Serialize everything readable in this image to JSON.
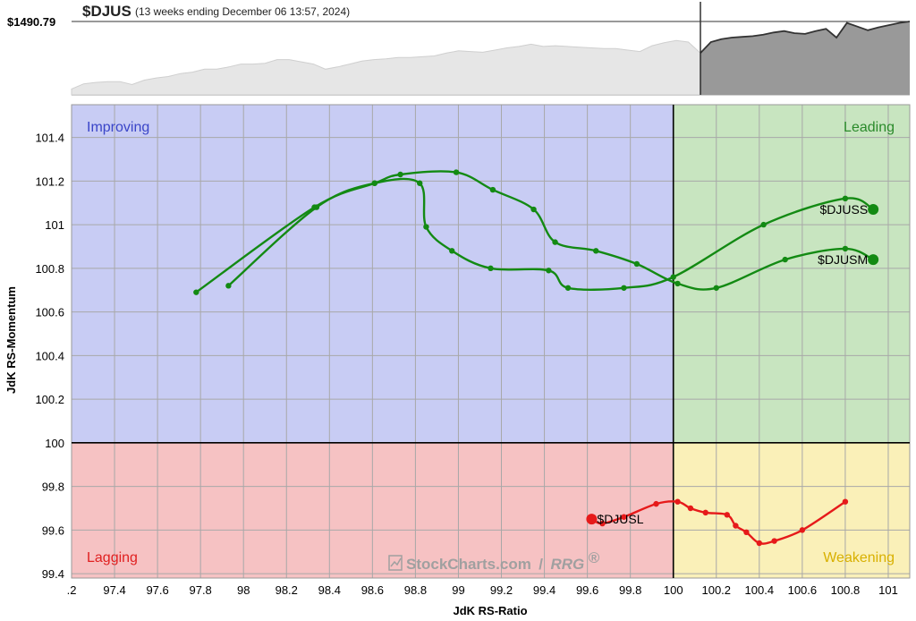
{
  "header": {
    "ticker": "$DJUS",
    "period": "(13 weeks ending December 06 13:57, 2024)",
    "price_label": "$1490.79"
  },
  "watermark": {
    "brand": "StockCharts.com",
    "separator": "/",
    "product": "RRG",
    "mark": "®"
  },
  "colors": {
    "improving": "#c8ccf4",
    "leading": "#c8e5c0",
    "lagging": "#f6c2c3",
    "weakening": "#faf0b8",
    "improving_text": "#3a45c8",
    "leading_text": "#2a8a2a",
    "lagging_text": "#e02020",
    "weakening_text": "#d8b000",
    "green_series": "#138a13",
    "red_series": "#e61a1a",
    "price_history": "#e6e6e6",
    "price_current": "#999999"
  },
  "chart_data": {
    "type": "scatter",
    "title": "",
    "xlabel": "JdK RS-Ratio",
    "ylabel": "JdK RS-Momentum",
    "xlim": [
      97.2,
      101.1
    ],
    "ylim": [
      99.38,
      101.55
    ],
    "x_ticks": [
      ".2",
      "97.4",
      "97.6",
      "97.8",
      "98",
      "98.2",
      "98.4",
      "98.6",
      "98.8",
      "99",
      "99.2",
      "99.4",
      "99.6",
      "99.8",
      "100",
      "100.2",
      "100.4",
      "100.6",
      "100.8",
      "101",
      "10"
    ],
    "y_ticks": [
      "99.4",
      "99.6",
      "99.8",
      "100",
      "100.2",
      "100.4",
      "100.6",
      "100.8",
      "101",
      "101.2",
      "101.4"
    ],
    "quadrants": {
      "top_left": "Improving",
      "top_right": "Leading",
      "bottom_left": "Lagging",
      "bottom_right": "Weakening"
    },
    "center": [
      100,
      100
    ],
    "series": [
      {
        "name": "$DJUSS",
        "color": "green",
        "points": [
          [
            97.93,
            100.72
          ],
          [
            98.34,
            101.08
          ],
          [
            98.61,
            101.19
          ],
          [
            98.82,
            101.19
          ],
          [
            98.85,
            100.99
          ],
          [
            98.97,
            100.88
          ],
          [
            99.15,
            100.8
          ],
          [
            99.42,
            100.79
          ],
          [
            99.51,
            100.71
          ],
          [
            99.77,
            100.71
          ],
          [
            100.0,
            100.76
          ],
          [
            100.42,
            101.0
          ],
          [
            100.8,
            101.12
          ],
          [
            100.93,
            101.07
          ]
        ]
      },
      {
        "name": "$DJUSM",
        "color": "green",
        "points": [
          [
            97.78,
            100.69
          ],
          [
            98.33,
            101.08
          ],
          [
            98.61,
            101.19
          ],
          [
            98.73,
            101.23
          ],
          [
            98.99,
            101.24
          ],
          [
            99.16,
            101.16
          ],
          [
            99.35,
            101.07
          ],
          [
            99.45,
            100.92
          ],
          [
            99.64,
            100.88
          ],
          [
            99.83,
            100.82
          ],
          [
            100.02,
            100.73
          ],
          [
            100.2,
            100.71
          ],
          [
            100.52,
            100.84
          ],
          [
            100.8,
            100.89
          ],
          [
            100.93,
            100.84
          ]
        ]
      },
      {
        "name": "$DJUSL",
        "color": "red",
        "points": [
          [
            100.8,
            99.73
          ],
          [
            100.6,
            99.6
          ],
          [
            100.47,
            99.55
          ],
          [
            100.4,
            99.54
          ],
          [
            100.34,
            99.59
          ],
          [
            100.29,
            99.62
          ],
          [
            100.25,
            99.67
          ],
          [
            100.15,
            99.68
          ],
          [
            100.08,
            99.7
          ],
          [
            100.02,
            99.73
          ],
          [
            99.92,
            99.72
          ],
          [
            99.77,
            99.66
          ],
          [
            99.67,
            99.63
          ],
          [
            99.62,
            99.65
          ]
        ]
      }
    ],
    "price_history_relative": [
      0.08,
      0.15,
      0.17,
      0.18,
      0.18,
      0.14,
      0.2,
      0.23,
      0.25,
      0.29,
      0.31,
      0.35,
      0.35,
      0.38,
      0.42,
      0.42,
      0.43,
      0.48,
      0.48,
      0.45,
      0.42,
      0.35,
      0.38,
      0.42,
      0.46,
      0.48,
      0.49,
      0.51,
      0.51,
      0.52,
      0.53,
      0.57,
      0.6,
      0.59,
      0.58,
      0.61,
      0.64,
      0.66,
      0.69,
      0.66,
      0.67,
      0.66,
      0.65,
      0.64,
      0.63,
      0.63,
      0.61,
      0.59,
      0.67,
      0.71,
      0.74,
      0.72,
      0.57
    ],
    "price_current_relative": [
      0.57,
      0.72,
      0.76,
      0.78,
      0.79,
      0.8,
      0.82,
      0.85,
      0.87,
      0.84,
      0.83,
      0.87,
      0.9,
      0.78,
      0.98,
      0.93,
      0.88,
      0.92,
      0.95,
      0.98,
      1.0
    ]
  }
}
